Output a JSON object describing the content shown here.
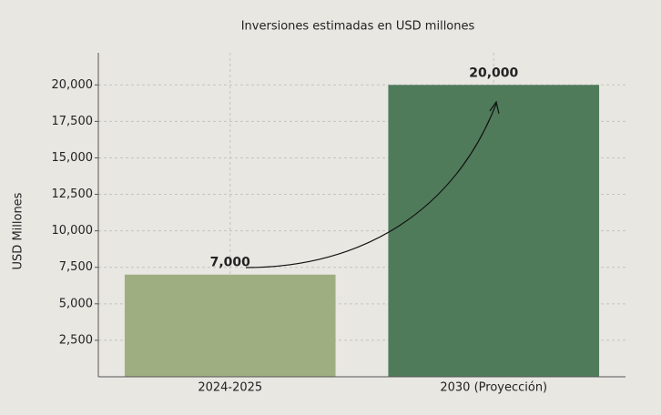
{
  "chart_data": {
    "type": "bar",
    "title": "Inversiones estimadas en USD millones",
    "ylabel": "USD Millones",
    "categories": [
      "2024-2025",
      "2030 (Proyección)"
    ],
    "values": [
      7000,
      20000
    ],
    "value_labels": [
      "7,000",
      "20,000"
    ],
    "colors": [
      "#9fae80",
      "#4f7b5a"
    ],
    "ylim": [
      0,
      22200
    ],
    "yticks": [
      {
        "value": 2500,
        "label": "2,500"
      },
      {
        "value": 5000,
        "label": "5,000"
      },
      {
        "value": 7500,
        "label": "7,500"
      },
      {
        "value": 10000,
        "label": "10,000"
      },
      {
        "value": 12500,
        "label": "12,500"
      },
      {
        "value": 15000,
        "label": "15,000"
      },
      {
        "value": 17500,
        "label": "17,500"
      },
      {
        "value": 20000,
        "label": "20,000"
      }
    ],
    "grid": true
  }
}
